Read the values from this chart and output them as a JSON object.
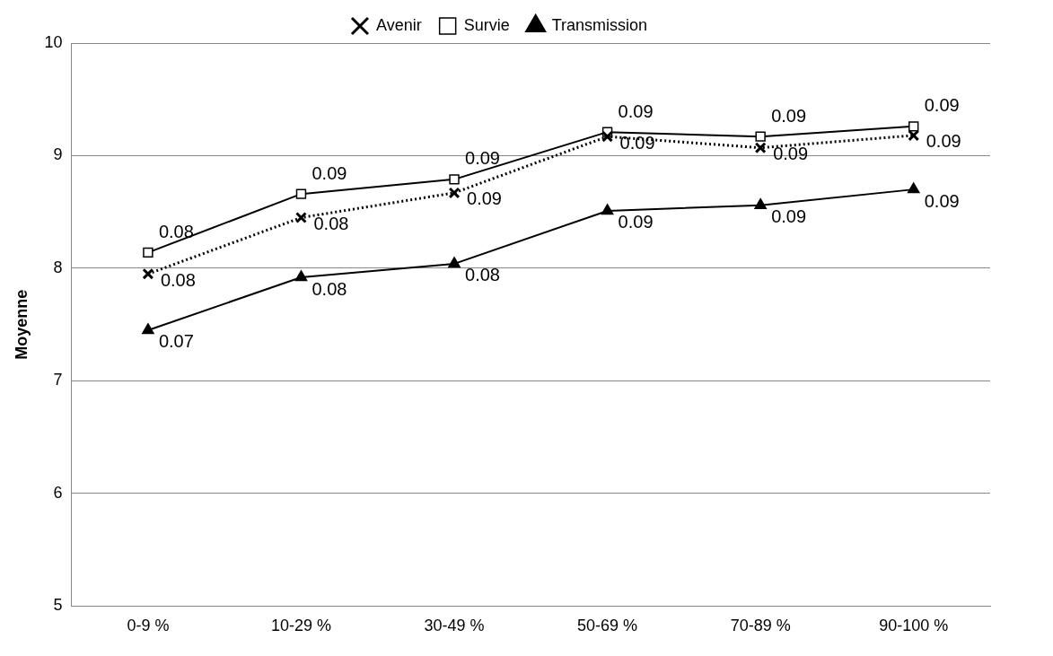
{
  "chart_data": {
    "type": "line",
    "ylabel": "Moyenne",
    "categories": [
      "0-9 %",
      "10-29 %",
      "30-49 %",
      "50-69 %",
      "70-89 %",
      "90-100 %"
    ],
    "ylim": [
      5,
      10
    ],
    "yticks": [
      5,
      6,
      7,
      8,
      9,
      10
    ],
    "grid": "y",
    "legend": "top",
    "series": [
      {
        "name": "Avenir",
        "color": "#000000",
        "marker": "cross",
        "line_style": "dotted",
        "values": [
          7.95,
          8.45,
          8.67,
          9.17,
          9.07,
          9.18
        ]
      },
      {
        "name": "Survie",
        "color": "#000000",
        "marker": "square",
        "line_style": "solid",
        "values": [
          8.14,
          8.66,
          8.79,
          9.21,
          9.17,
          9.26
        ]
      },
      {
        "name": "Transmission",
        "color": "#000000",
        "marker": "triangle",
        "line_style": "solid",
        "values": [
          7.45,
          7.92,
          8.04,
          8.51,
          8.56,
          8.7
        ]
      }
    ],
    "annotations": [
      {
        "text": "0.08",
        "x": "0-9 %",
        "y": 7.95
      },
      {
        "text": "0.08",
        "x": "10-29 %",
        "y": 8.45
      },
      {
        "text": "0.09",
        "x": "30-49 %",
        "y": 8.67
      },
      {
        "text": "0.09",
        "x": "50-69 %",
        "y": 9.17
      },
      {
        "text": "0.09",
        "x": "70-89 %",
        "y": 9.07
      },
      {
        "text": "0.09",
        "x": "90-100 %",
        "y": 9.18
      },
      {
        "text": "0.08",
        "x": "0-9 %",
        "y": 8.14
      },
      {
        "text": "0.09",
        "x": "10-29 %",
        "y": 8.66
      },
      {
        "text": "0.09",
        "x": "30-49 %",
        "y": 8.79
      },
      {
        "text": "0.09",
        "x": "50-69 %",
        "y": 9.21
      },
      {
        "text": "0.09",
        "x": "70-89 %",
        "y": 9.17
      },
      {
        "text": "0.09",
        "x": "90-100 %",
        "y": 9.26
      },
      {
        "text": "0.07",
        "x": "0-9 %",
        "y": 7.45
      },
      {
        "text": "0.08",
        "x": "10-29 %",
        "y": 7.92
      },
      {
        "text": "0.08",
        "x": "30-49 %",
        "y": 8.04
      },
      {
        "text": "0.09",
        "x": "50-69 %",
        "y": 8.51
      },
      {
        "text": "0.09",
        "x": "70-89 %",
        "y": 8.56
      },
      {
        "text": "0.09",
        "x": "90-100 %",
        "y": 8.7
      }
    ]
  }
}
